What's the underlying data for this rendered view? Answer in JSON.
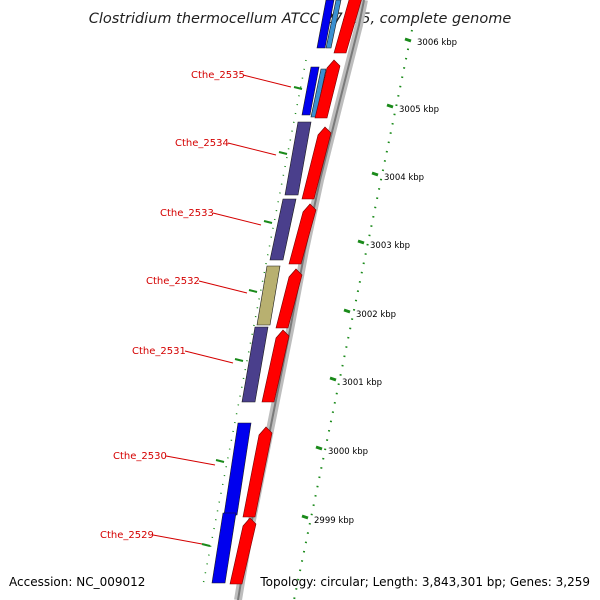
{
  "title": "Clostridium thermocellum ATCC 27405, complete genome",
  "accession": "Accession: NC_009012",
  "topology": "Topology: circular; Length: 3,843,301 bp; Genes: 3,259",
  "colors": {
    "background": "#ffffff",
    "gene_label": "#d40000",
    "feature_red": "#ff0000",
    "feature_blue": "#0000ee",
    "feature_purple": "#4a3f8c",
    "feature_olive": "#b8b070",
    "backbone": "#888888",
    "tick_green": "#1a8a1a"
  },
  "genes": [
    {
      "label": "Cthe_2535",
      "cog_color": "#1a5cc8"
    },
    {
      "label": "Cthe_2534",
      "cog_color": "#4a3f8c"
    },
    {
      "label": "Cthe_2533",
      "cog_color": "#4a3f8c"
    },
    {
      "label": "Cthe_2532",
      "cog_color": "#b8b070"
    },
    {
      "label": "Cthe_2531",
      "cog_color": "#4a3f8c"
    },
    {
      "label": "Cthe_2530",
      "cog_color": "#0000ee"
    },
    {
      "label": "Cthe_2529",
      "cog_color": "#0000ee"
    }
  ],
  "scale_labels": [
    "3006 kbp",
    "3005 kbp",
    "3004 kbp",
    "3003 kbp",
    "3002 kbp",
    "3001 kbp",
    "3000 kbp",
    "2999 kbp"
  ]
}
